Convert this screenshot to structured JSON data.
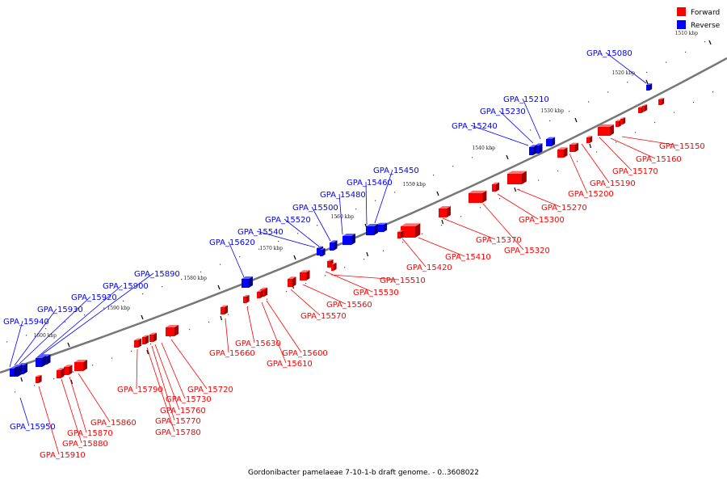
{
  "legend": {
    "forward_label": "Forward",
    "reverse_label": "Reverse",
    "forward_color": "#ff0000",
    "reverse_color": "#0000ff"
  },
  "caption": "Gordonibacter pamelaeae 7-10-1-b draft genome. - 0..3608022",
  "kbp_marks": [
    "1510 kbp",
    "1520 kbp",
    "1530 kbp",
    "1540 kbp",
    "1550 kbp",
    "1560 kbp",
    "1570 kbp",
    "1580 kbp",
    "1590 kbp",
    "1600 kbp"
  ],
  "reverse_genes": [
    "GPA_15080",
    "GPA_15210",
    "GPA_15230",
    "GPA_15240",
    "GPA_15450",
    "GPA_15460",
    "GPA_15480",
    "GPA_15500",
    "GPA_15520",
    "GPA_15540",
    "GPA_15620",
    "GPA_15890",
    "GPA_15900",
    "GPA_15920",
    "GPA_15930",
    "GPA_15940",
    "GPA_15950"
  ],
  "forward_genes": [
    "GPA_15150",
    "GPA_15160",
    "GPA_15170",
    "GPA_15190",
    "GPA_15200",
    "GPA_15270",
    "GPA_15300",
    "GPA_15320",
    "GPA_15370",
    "GPA_15410",
    "GPA_15420",
    "GPA_15510",
    "GPA_15530",
    "GPA_15560",
    "GPA_15570",
    "GPA_15600",
    "GPA_15610",
    "GPA_15630",
    "GPA_15660",
    "GPA_15720",
    "GPA_15730",
    "GPA_15760",
    "GPA_15770",
    "GPA_15780",
    "GPA_15790",
    "GPA_15860",
    "GPA_15870",
    "GPA_15880",
    "GPA_15910"
  ]
}
